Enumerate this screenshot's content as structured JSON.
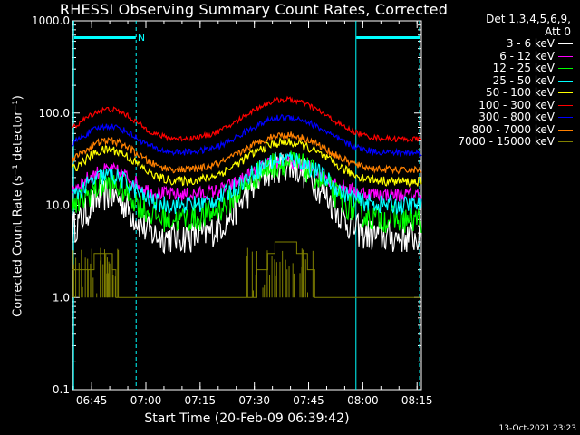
{
  "title": "RHESSI Observing Summary Count Rates, Corrected",
  "xlabel": "Start Time (20-Feb-09 06:39:42)",
  "ylabel": "Corrected Count Rate (s⁻¹ detector⁻¹)",
  "timestamp": "13-Oct-2021 23:23",
  "legend": {
    "header1": "Det 1,3,4,5,6,9,",
    "header2": "Att 0",
    "entries": [
      {
        "label": "3 - 6 keV",
        "color": "#ffffff"
      },
      {
        "label": "6 - 12 keV",
        "color": "#ff00ff"
      },
      {
        "label": "12 - 25 keV",
        "color": "#00ff00"
      },
      {
        "label": "25 - 50 keV",
        "color": "#00ffff"
      },
      {
        "label": "50 - 100 keV",
        "color": "#ffff00"
      },
      {
        "label": "100 - 300 keV",
        "color": "#ff0000"
      },
      {
        "label": "300 - 800 keV",
        "color": "#0000ff"
      },
      {
        "label": "800 - 7000 keV",
        "color": "#ff8000"
      },
      {
        "label": "7000 - 15000 keV",
        "color": "#808000"
      }
    ]
  },
  "chart_data": {
    "type": "line",
    "title": "RHESSI Observing Summary Count Rates, Corrected",
    "xlabel": "Start Time (20-Feb-09 06:39:42)",
    "ylabel": "Corrected Count Rate (s⁻¹ detector⁻¹)",
    "x_unit": "minutes after 06:39:42",
    "x_ticks": [
      "06:45",
      "07:00",
      "07:15",
      "07:30",
      "07:45",
      "08:00",
      "08:15"
    ],
    "xlim": [
      0,
      96.5
    ],
    "ylim": [
      0.1,
      1000
    ],
    "y_scale": "log",
    "y_ticks": [
      "0.1",
      "1.0",
      "10.0",
      "100.0",
      "1000.0"
    ],
    "background_color": "#000000",
    "night_bars": [
      {
        "x_start": 0.5,
        "x_end": 17.5,
        "label": "N",
        "color": "#00ffff"
      },
      {
        "x_start": 78.5,
        "x_end": 96.0,
        "label": "",
        "color": "#00ffff"
      }
    ],
    "vertical_markers": [
      {
        "x": 0.3,
        "style": "solid"
      },
      {
        "x": 17.6,
        "style": "dashed"
      },
      {
        "x": 78.4,
        "style": "solid"
      },
      {
        "x": 96.0,
        "style": "dashed"
      }
    ],
    "series": [
      {
        "name": "3 - 6 keV",
        "color": "#ffffff",
        "base": 4.5,
        "peaks": [
          [
            10,
            13,
            7
          ],
          [
            59,
            27,
            11
          ]
        ],
        "noise": 0.18
      },
      {
        "name": "6 - 12 keV",
        "color": "#ff00ff",
        "base": 13,
        "peaks": [
          [
            10,
            24,
            8
          ],
          [
            59,
            30,
            12
          ]
        ],
        "noise": 0.08
      },
      {
        "name": "12 - 25 keV",
        "color": "#00ff00",
        "base": 7,
        "peaks": [
          [
            10,
            17,
            8
          ],
          [
            59,
            29,
            12
          ]
        ],
        "noise": 0.15
      },
      {
        "name": "25 - 50 keV",
        "color": "#00ffff",
        "base": 10,
        "peaks": [
          [
            10,
            21,
            8
          ],
          [
            59,
            32,
            12
          ]
        ],
        "noise": 0.1
      },
      {
        "name": "50 - 100 keV",
        "color": "#ffff00",
        "base": 18,
        "peaks": [
          [
            10,
            40,
            9
          ],
          [
            59,
            48,
            13
          ]
        ],
        "noise": 0.05
      },
      {
        "name": "100 - 300 keV",
        "color": "#ff0000",
        "base": 52,
        "peaks": [
          [
            10,
            110,
            9
          ],
          [
            59,
            140,
            13
          ]
        ],
        "noise": 0.03
      },
      {
        "name": "300 - 800 keV",
        "color": "#0000ff",
        "base": 37,
        "peaks": [
          [
            10,
            72,
            9
          ],
          [
            59,
            90,
            13
          ]
        ],
        "noise": 0.035
      },
      {
        "name": "800 - 7000 keV",
        "color": "#ff8000",
        "base": 24,
        "peaks": [
          [
            10,
            50,
            9
          ],
          [
            59,
            58,
            13
          ]
        ],
        "noise": 0.04
      },
      {
        "name": "7000 - 15000 keV",
        "color": "#808000",
        "steps": [
          [
            0,
            2
          ],
          [
            3,
            2
          ],
          [
            6,
            3
          ],
          [
            9,
            3
          ],
          [
            11,
            2
          ],
          [
            12,
            1
          ],
          [
            17,
            1
          ],
          [
            47,
            1
          ],
          [
            51,
            2
          ],
          [
            54,
            3
          ],
          [
            56,
            4
          ],
          [
            62,
            3
          ],
          [
            65,
            2
          ],
          [
            67,
            1
          ],
          [
            96,
            1
          ]
        ]
      }
    ]
  }
}
